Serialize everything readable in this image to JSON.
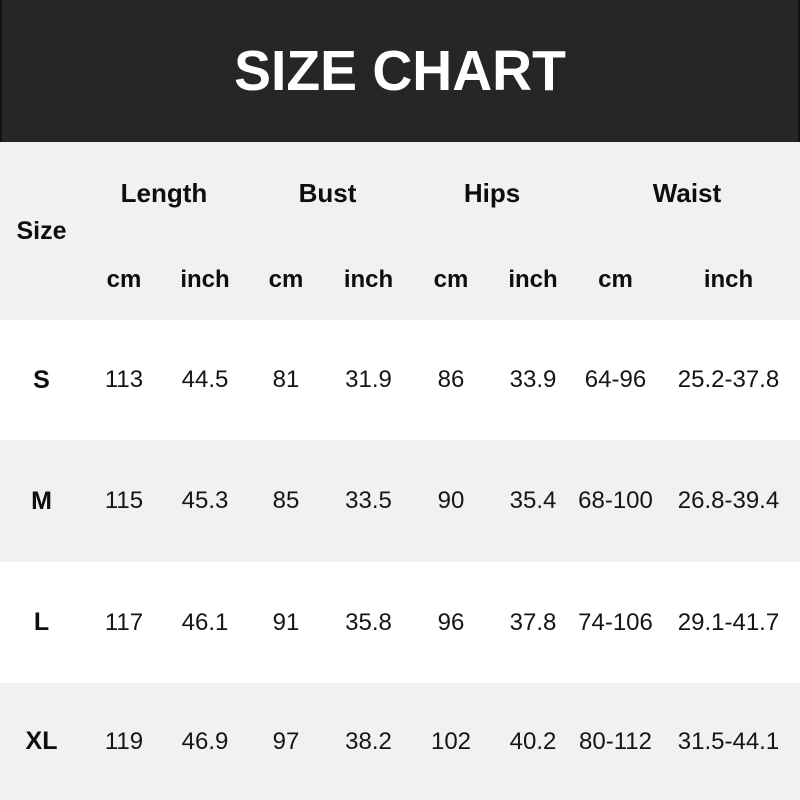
{
  "banner": {
    "title": "SIZE CHART",
    "bg_color": "#262626",
    "text_color": "#ffffff"
  },
  "table": {
    "size_label": "Size",
    "group_headers": [
      "Length",
      "Bust",
      "Hips",
      "Waist"
    ],
    "unit_headers": [
      "cm",
      "inch",
      "cm",
      "inch",
      "cm",
      "inch",
      "cm",
      "inch"
    ],
    "rows": [
      {
        "size": "S",
        "values": [
          "113",
          "44.5",
          "81",
          "31.9",
          "86",
          "33.9",
          "64-96",
          "25.2-37.8"
        ]
      },
      {
        "size": "M",
        "values": [
          "115",
          "45.3",
          "85",
          "33.5",
          "90",
          "35.4",
          "68-100",
          "26.8-39.4"
        ]
      },
      {
        "size": "L",
        "values": [
          "117",
          "46.1",
          "91",
          "35.8",
          "96",
          "37.8",
          "74-106",
          "29.1-41.7"
        ]
      },
      {
        "size": "XL",
        "values": [
          "119",
          "46.9",
          "97",
          "38.2",
          "102",
          "40.2",
          "80-112",
          "31.5-44.1"
        ]
      }
    ],
    "colors": {
      "row_bg": "#ffffff",
      "row_alt_bg": "#f1f1f2",
      "text": "#151515"
    }
  },
  "chart_data": {
    "type": "table",
    "title": "SIZE CHART",
    "column_groups": [
      "Length",
      "Bust",
      "Hips",
      "Waist"
    ],
    "columns": [
      "Size",
      "Length cm",
      "Length inch",
      "Bust cm",
      "Bust inch",
      "Hips cm",
      "Hips inch",
      "Waist cm",
      "Waist inch"
    ],
    "rows": [
      [
        "S",
        "113",
        "44.5",
        "81",
        "31.9",
        "86",
        "33.9",
        "64-96",
        "25.2-37.8"
      ],
      [
        "M",
        "115",
        "45.3",
        "85",
        "33.5",
        "90",
        "35.4",
        "68-100",
        "26.8-39.4"
      ],
      [
        "L",
        "117",
        "46.1",
        "91",
        "35.8",
        "96",
        "37.8",
        "74-106",
        "29.1-41.7"
      ],
      [
        "XL",
        "119",
        "46.9",
        "97",
        "38.2",
        "102",
        "40.2",
        "80-112",
        "31.5-44.1"
      ]
    ]
  }
}
